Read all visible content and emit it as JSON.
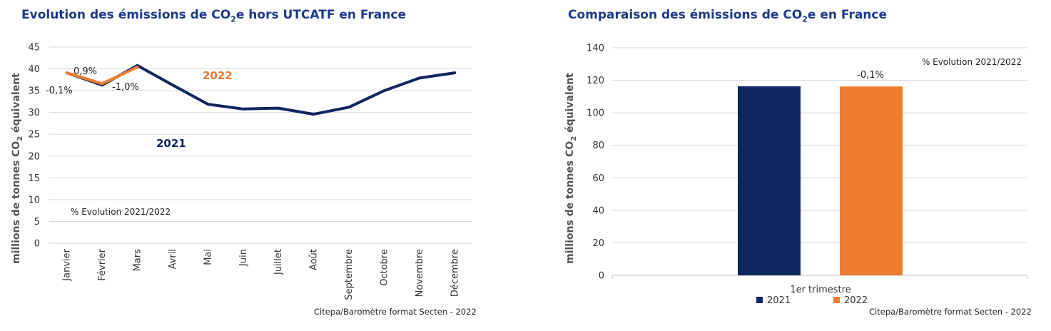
{
  "charts": {
    "left": {
      "title_pre": "Evolution des émissions de CO",
      "title_sub": "2",
      "title_post": "e hors UTCATF en France",
      "source": "Citepa/Baromètre format Secten - 2022",
      "ylabel_pre": "millions de tonnes CO",
      "ylabel_sub": "2",
      "ylabel_post": " équivalent",
      "note": "% Evolution 2021/2022",
      "series_labels": {
        "s2021": "2021",
        "s2022": "2022"
      },
      "pct_labels": [
        "-0,1%",
        "0,9%",
        "-1,0%"
      ]
    },
    "right": {
      "title_pre": "Comparaison des émissions de CO",
      "title_sub": "2",
      "title_post": "e en France",
      "source": "Citepa/Baromètre format Secten - 2022",
      "ylabel_pre": "millions de tonnes CO",
      "ylabel_sub": "2",
      "ylabel_post": " équivalent",
      "note": "% Evolution 2021/2022",
      "bar_pct_label": "-0,1%",
      "legend": [
        "2021",
        "2022"
      ]
    }
  },
  "colors": {
    "navy": "#0f2660",
    "orange": "#ed7d31",
    "grid": "#d9d9d9",
    "title": "#1f3a8a",
    "s2021_label": "#0f2660",
    "s2022_label": "#ed7d31"
  },
  "chart_data": [
    {
      "type": "line",
      "categories": [
        "Janvier",
        "Février",
        "Mars",
        "Avril",
        "Mai",
        "Juin",
        "Juillet",
        "Août",
        "Septembre",
        "Octobre",
        "Novembre",
        "Décembre"
      ],
      "series": [
        {
          "name": "2021",
          "values": [
            39.1,
            36.3,
            40.8,
            36.3,
            31.9,
            30.8,
            31.0,
            29.6,
            31.2,
            35.0,
            37.9,
            39.1
          ]
        },
        {
          "name": "2022",
          "values": [
            39.1,
            36.6,
            40.4,
            null,
            null,
            null,
            null,
            null,
            null,
            null,
            null,
            null
          ]
        }
      ],
      "ylim": [
        0,
        45
      ],
      "yticks": [
        0,
        5,
        10,
        15,
        20,
        25,
        30,
        35,
        40,
        45
      ],
      "grid": true
    },
    {
      "type": "bar",
      "categories": [
        "1er trimestre"
      ],
      "series": [
        {
          "name": "2021",
          "values": [
            116.3
          ]
        },
        {
          "name": "2022",
          "values": [
            116.2
          ]
        }
      ],
      "ylim": [
        0,
        140
      ],
      "yticks": [
        0,
        20,
        40,
        60,
        80,
        100,
        120,
        140
      ],
      "grid": true,
      "legend": "bottom"
    }
  ]
}
